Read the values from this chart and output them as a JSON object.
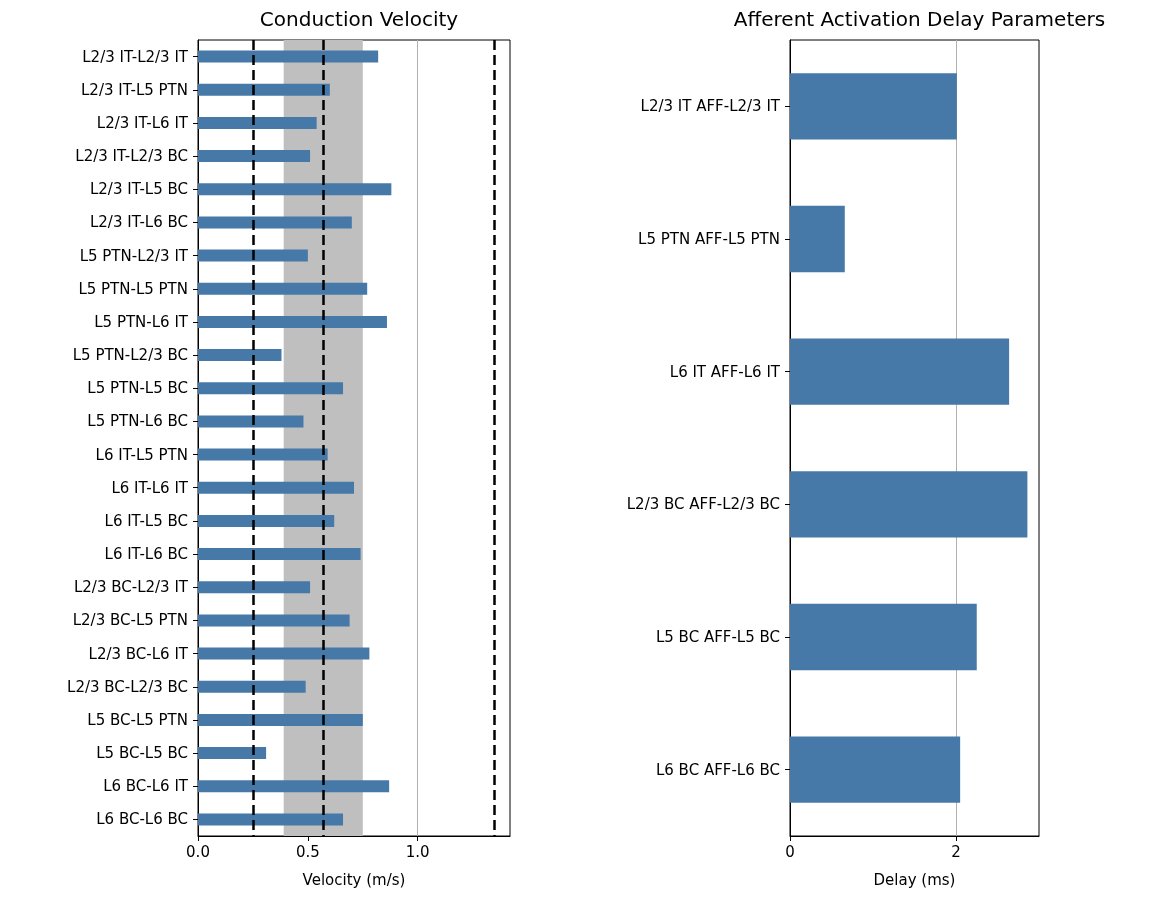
{
  "chart_data": [
    {
      "type": "bar",
      "title": "Conduction Velocity",
      "xlabel": "Velocity (m/s)",
      "orientation": "horizontal",
      "grid": "x",
      "categories": [
        "L2/3 IT-L2/3 IT",
        "L2/3 IT-L5 PTN",
        "L2/3 IT-L6 IT",
        "L2/3 IT-L2/3 BC",
        "L2/3 IT-L5 BC",
        "L2/3 IT-L6 BC",
        "L5 PTN-L2/3 IT",
        "L5 PTN-L5 PTN",
        "L5 PTN-L6 IT",
        "L5 PTN-L2/3 BC",
        "L5 PTN-L5 BC",
        "L5 PTN-L6 BC",
        "L6 IT-L5 PTN",
        "L6 IT-L6 IT",
        "L6 IT-L5 BC",
        "L6 IT-L6 BC",
        "L2/3 BC-L2/3 IT",
        "L2/3 BC-L5 PTN",
        "L2/3 BC-L6 IT",
        "L2/3 BC-L2/3 BC",
        "L5 BC-L5 PTN",
        "L5 BC-L5 BC",
        "L6 BC-L6 IT",
        "L6 BC-L6 BC"
      ],
      "values": [
        0.82,
        0.6,
        0.54,
        0.51,
        0.88,
        0.7,
        0.5,
        0.77,
        0.86,
        0.38,
        0.66,
        0.48,
        0.59,
        0.71,
        0.62,
        0.74,
        0.51,
        0.69,
        0.78,
        0.49,
        0.75,
        0.31,
        0.87,
        0.66
      ],
      "color": "#4678a8",
      "xlim": [
        0,
        1.42
      ],
      "xticks": [
        {
          "value": 0,
          "label": "0.0"
        },
        {
          "value": 0.5,
          "label": "0.5"
        },
        {
          "value": 1,
          "label": "1.0"
        }
      ],
      "ref_lines": [
        {
          "axis": "x",
          "value": 0.25,
          "color": "#000000",
          "line_style": "dashed"
        },
        {
          "axis": "x",
          "value": 0.57,
          "color": "#000000",
          "line_style": "dashed"
        },
        {
          "axis": "x",
          "value": 1.35,
          "color": "#000000",
          "line_style": "dashed"
        }
      ],
      "bands": [
        {
          "axis": "x",
          "from": 0.39,
          "to": 0.75,
          "color": "#bfbfbf"
        }
      ]
    },
    {
      "type": "bar",
      "title": "Afferent Activation Delay Parameters",
      "xlabel": "Delay (ms)",
      "orientation": "horizontal",
      "grid": "x",
      "categories": [
        "L2/3 IT AFF-L2/3 IT",
        "L5 PTN AFF-L5 PTN",
        "L6 IT AFF-L6 IT",
        "L2/3 BC AFF-L2/3 BC",
        "L5 BC AFF-L5 BC",
        "L6 BC AFF-L6 BC"
      ],
      "values": [
        2.01,
        0.66,
        2.64,
        2.86,
        2.25,
        2.05
      ],
      "color": "#4678a8",
      "xlim": [
        0,
        3
      ],
      "xticks": [
        0,
        2
      ]
    }
  ]
}
